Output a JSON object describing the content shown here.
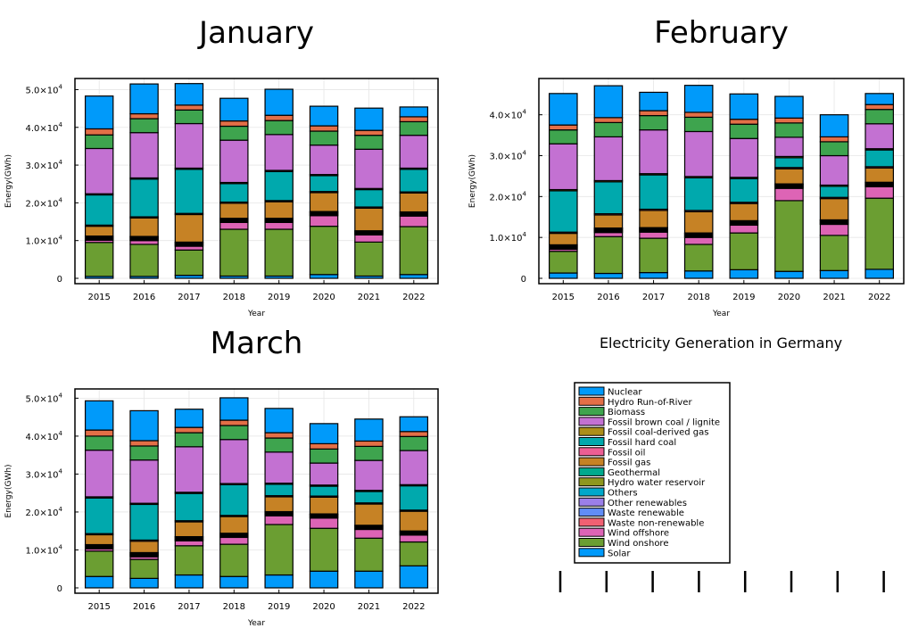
{
  "chart_data": [
    {
      "type": "bar",
      "stacked": true,
      "title": "January",
      "xlabel": "Year",
      "ylabel": "Energy(GWh)",
      "ylim": [
        0,
        52000
      ],
      "yticks": [
        0,
        10000,
        20000,
        30000,
        40000,
        50000
      ],
      "ytick_labels": [
        {
          "mantissa": "0",
          "exp": ""
        },
        {
          "mantissa": "1.0×10",
          "exp": "4"
        },
        {
          "mantissa": "2.0×10",
          "exp": "4"
        },
        {
          "mantissa": "3.0×10",
          "exp": "4"
        },
        {
          "mantissa": "4.0×10",
          "exp": "4"
        },
        {
          "mantissa": "5.0×10",
          "exp": "4"
        }
      ],
      "categories": [
        "2015",
        "2016",
        "2017",
        "2018",
        "2019",
        "2020",
        "2021",
        "2022"
      ],
      "series": [
        {
          "name": "Solar",
          "values": [
            500,
            500,
            800,
            600,
            600,
            1000,
            600,
            1000
          ]
        },
        {
          "name": "Wind onshore",
          "values": [
            9000,
            8500,
            6700,
            12400,
            12400,
            12800,
            9000,
            12700
          ]
        },
        {
          "name": "Wind offshore",
          "values": [
            600,
            1000,
            1000,
            1800,
            1800,
            2800,
            1900,
            2800
          ]
        },
        {
          "name": "Waste non-renewable",
          "values": [
            200,
            200,
            200,
            200,
            200,
            200,
            200,
            200
          ]
        },
        {
          "name": "Waste renewable",
          "values": [
            200,
            200,
            200,
            200,
            200,
            200,
            200,
            200
          ]
        },
        {
          "name": "Other renewables",
          "values": [
            200,
            200,
            200,
            200,
            200,
            200,
            200,
            200
          ]
        },
        {
          "name": "Others",
          "values": [
            200,
            200,
            200,
            200,
            200,
            200,
            200,
            200
          ]
        },
        {
          "name": "Hydro water reservoir",
          "values": [
            200,
            200,
            200,
            200,
            200,
            200,
            200,
            200
          ]
        },
        {
          "name": "Geothermal",
          "values": [
            100,
            100,
            100,
            100,
            100,
            100,
            100,
            100
          ]
        },
        {
          "name": "Fossil gas",
          "values": [
            2600,
            4900,
            7300,
            4000,
            4400,
            5000,
            6000,
            5000
          ]
        },
        {
          "name": "Fossil oil",
          "values": [
            300,
            300,
            300,
            300,
            300,
            300,
            300,
            300
          ]
        },
        {
          "name": "Fossil hard coal",
          "values": [
            8000,
            10000,
            11700,
            4900,
            7700,
            4200,
            4600,
            6000
          ]
        },
        {
          "name": "Fossil coal-derived gas",
          "values": [
            300,
            300,
            300,
            300,
            300,
            300,
            300,
            300
          ]
        },
        {
          "name": "Fossil brown coal / lignite",
          "values": [
            12000,
            12000,
            11800,
            11200,
            9500,
            7800,
            10400,
            8700
          ]
        },
        {
          "name": "Biomass",
          "values": [
            3600,
            3700,
            3600,
            3700,
            3700,
            3700,
            3700,
            3600
          ]
        },
        {
          "name": "Hydro Run-of-River",
          "values": [
            1600,
            1300,
            1300,
            1400,
            1400,
            1400,
            1300,
            1300
          ]
        },
        {
          "name": "Nuclear",
          "values": [
            8700,
            7900,
            5700,
            6000,
            6900,
            5200,
            5900,
            2600
          ]
        }
      ]
    },
    {
      "type": "bar",
      "stacked": true,
      "title": "February",
      "xlabel": "Year",
      "ylabel": "Energy(GWh)",
      "ylim": [
        0,
        48000
      ],
      "yticks": [
        0,
        10000,
        20000,
        30000,
        40000
      ],
      "ytick_labels": [
        {
          "mantissa": "0",
          "exp": ""
        },
        {
          "mantissa": "1.0×10",
          "exp": "4"
        },
        {
          "mantissa": "2.0×10",
          "exp": "4"
        },
        {
          "mantissa": "3.0×10",
          "exp": "4"
        },
        {
          "mantissa": "4.0×10",
          "exp": "4"
        }
      ],
      "categories": [
        "2015",
        "2016",
        "2017",
        "2018",
        "2019",
        "2020",
        "2021",
        "2022"
      ],
      "series": [
        {
          "name": "Solar",
          "values": [
            1300,
            1200,
            1400,
            1800,
            2100,
            1700,
            1900,
            2200
          ]
        },
        {
          "name": "Wind onshore",
          "values": [
            5300,
            9000,
            8400,
            6500,
            9000,
            17300,
            8600,
            17400
          ]
        },
        {
          "name": "Wind offshore",
          "values": [
            500,
            1000,
            1500,
            1700,
            1900,
            3000,
            2700,
            2800
          ]
        },
        {
          "name": "Waste non-renewable",
          "values": [
            200,
            200,
            200,
            200,
            200,
            200,
            200,
            200
          ]
        },
        {
          "name": "Waste renewable",
          "values": [
            200,
            200,
            200,
            200,
            200,
            200,
            200,
            200
          ]
        },
        {
          "name": "Other renewables",
          "values": [
            200,
            200,
            200,
            200,
            200,
            200,
            200,
            200
          ]
        },
        {
          "name": "Others",
          "values": [
            200,
            200,
            200,
            200,
            200,
            200,
            200,
            200
          ]
        },
        {
          "name": "Hydro water reservoir",
          "values": [
            200,
            200,
            200,
            200,
            200,
            200,
            200,
            200
          ]
        },
        {
          "name": "Geothermal",
          "values": [
            100,
            100,
            100,
            100,
            100,
            100,
            100,
            100
          ]
        },
        {
          "name": "Fossil gas",
          "values": [
            2800,
            3200,
            4200,
            5200,
            4200,
            3700,
            5200,
            3500
          ]
        },
        {
          "name": "Fossil oil",
          "values": [
            300,
            300,
            300,
            300,
            300,
            300,
            300,
            300
          ]
        },
        {
          "name": "Fossil hard coal",
          "values": [
            10100,
            7800,
            8400,
            8000,
            5800,
            2400,
            2700,
            4100
          ]
        },
        {
          "name": "Fossil coal-derived gas",
          "values": [
            300,
            300,
            300,
            300,
            300,
            300,
            300,
            300
          ]
        },
        {
          "name": "Fossil brown coal / lignite",
          "values": [
            11200,
            10700,
            10700,
            11000,
            9500,
            4700,
            7200,
            6100
          ]
        },
        {
          "name": "Biomass",
          "values": [
            3400,
            3500,
            3500,
            3500,
            3500,
            3500,
            3400,
            3500
          ]
        },
        {
          "name": "Hydro Run-of-River",
          "values": [
            1200,
            1200,
            1200,
            1200,
            1200,
            1200,
            1200,
            1200
          ]
        },
        {
          "name": "Nuclear",
          "values": [
            7700,
            7800,
            4500,
            6600,
            6200,
            5300,
            5400,
            2700
          ]
        }
      ]
    },
    {
      "type": "bar",
      "stacked": true,
      "title": "March",
      "xlabel": "Year",
      "ylabel": "Energy(GWh)",
      "ylim": [
        0,
        51500
      ],
      "yticks": [
        0,
        10000,
        20000,
        30000,
        40000,
        50000
      ],
      "ytick_labels": [
        {
          "mantissa": "0",
          "exp": ""
        },
        {
          "mantissa": "1.0×10",
          "exp": "4"
        },
        {
          "mantissa": "2.0×10",
          "exp": "4"
        },
        {
          "mantissa": "3.0×10",
          "exp": "4"
        },
        {
          "mantissa": "4.0×10",
          "exp": "4"
        },
        {
          "mantissa": "5.0×10",
          "exp": "4"
        }
      ],
      "categories": [
        "2015",
        "2016",
        "2017",
        "2018",
        "2019",
        "2020",
        "2021",
        "2022"
      ],
      "series": [
        {
          "name": "Solar",
          "values": [
            3000,
            2500,
            3400,
            3000,
            3400,
            4400,
            4400,
            5800
          ]
        },
        {
          "name": "Wind onshore",
          "values": [
            6700,
            5000,
            7700,
            8500,
            13300,
            11300,
            8700,
            6300
          ]
        },
        {
          "name": "Wind offshore",
          "values": [
            600,
            700,
            1300,
            1800,
            2300,
            2700,
            2300,
            1800
          ]
        },
        {
          "name": "Waste non-renewable",
          "values": [
            200,
            200,
            200,
            200,
            200,
            200,
            200,
            200
          ]
        },
        {
          "name": "Waste renewable",
          "values": [
            200,
            200,
            200,
            200,
            200,
            200,
            200,
            200
          ]
        },
        {
          "name": "Other renewables",
          "values": [
            200,
            200,
            200,
            200,
            200,
            200,
            200,
            200
          ]
        },
        {
          "name": "Others",
          "values": [
            200,
            200,
            200,
            200,
            200,
            200,
            200,
            200
          ]
        },
        {
          "name": "Hydro water reservoir",
          "values": [
            200,
            200,
            200,
            200,
            200,
            200,
            200,
            200
          ]
        },
        {
          "name": "Geothermal",
          "values": [
            100,
            100,
            100,
            100,
            100,
            100,
            100,
            100
          ]
        },
        {
          "name": "Fossil gas",
          "values": [
            2600,
            3000,
            3900,
            4400,
            3900,
            4400,
            5600,
            5200
          ]
        },
        {
          "name": "Fossil oil",
          "values": [
            300,
            300,
            300,
            300,
            300,
            300,
            300,
            300
          ]
        },
        {
          "name": "Fossil hard coal",
          "values": [
            9400,
            9400,
            7200,
            8100,
            3000,
            2600,
            3000,
            6400
          ]
        },
        {
          "name": "Fossil coal-derived gas",
          "values": [
            300,
            300,
            300,
            300,
            300,
            300,
            300,
            300
          ]
        },
        {
          "name": "Fossil brown coal / lignite",
          "values": [
            12300,
            11400,
            12000,
            11600,
            8200,
            5800,
            7900,
            9000
          ]
        },
        {
          "name": "Biomass",
          "values": [
            3700,
            3700,
            3700,
            3700,
            3700,
            3700,
            3700,
            3700
          ]
        },
        {
          "name": "Hydro Run-of-River",
          "values": [
            1600,
            1400,
            1400,
            1400,
            1400,
            1400,
            1400,
            1300
          ]
        },
        {
          "name": "Nuclear",
          "values": [
            7700,
            7900,
            4800,
            5900,
            6400,
            5300,
            5800,
            3900
          ]
        }
      ]
    }
  ],
  "legend": {
    "title": "Electricity Generation in Germany",
    "entries": [
      {
        "name": "Nuclear",
        "color": "#009AFA"
      },
      {
        "name": "Hydro Run-of-River",
        "color": "#E36F47"
      },
      {
        "name": "Biomass",
        "color": "#3EA44E"
      },
      {
        "name": "Fossil brown coal / lignite",
        "color": "#C371D2"
      },
      {
        "name": "Fossil coal-derived gas",
        "color": "#AC8E18"
      },
      {
        "name": "Fossil hard coal",
        "color": "#00A9AD"
      },
      {
        "name": "Fossil oil",
        "color": "#ED5E93"
      },
      {
        "name": "Fossil gas",
        "color": "#C68225"
      },
      {
        "name": "Geothermal",
        "color": "#00A98D"
      },
      {
        "name": "Hydro water reservoir",
        "color": "#8E971E"
      },
      {
        "name": "Others",
        "color": "#00A8CB"
      },
      {
        "name": "Other renewables",
        "color": "#9B7FE9"
      },
      {
        "name": "Waste renewable",
        "color": "#618DF6"
      },
      {
        "name": "Waste non-renewable",
        "color": "#F16072"
      },
      {
        "name": "Wind offshore",
        "color": "#DD64B5"
      },
      {
        "name": "Wind onshore",
        "color": "#6B9E32"
      },
      {
        "name": "Solar",
        "color": "#009AFA"
      }
    ]
  }
}
